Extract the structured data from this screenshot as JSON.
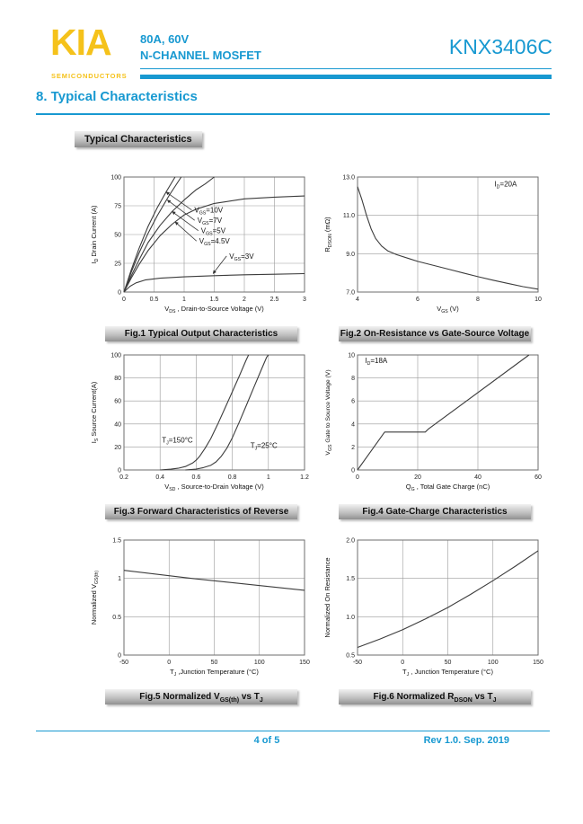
{
  "colors": {
    "accent_cyan": "#1899D1",
    "brand_yellow": "#F5C21B"
  },
  "header": {
    "logo": "KIA",
    "logo_subtitle": "SEMICONDUCTORS",
    "rating_line": "80A, 60V",
    "device_type": "N-CHANNEL MOSFET",
    "part_number": "KNX3406C"
  },
  "section": {
    "title": "8. Typical Characteristics",
    "badge": "Typical Characteristics"
  },
  "footer": {
    "page": "4 of 5",
    "revision": "Rev 1.0. Sep. 2019"
  },
  "chart_data": [
    {
      "id": "fig1",
      "type": "line",
      "caption": "Fig.1 Typical Output Characteristics",
      "xlabel": "V_{DS} , Drain-to-Source Voltage (V)",
      "ylabel": "I_{D} Drain Current (A)",
      "xlim": [
        0,
        3
      ],
      "ylim": [
        0,
        100
      ],
      "xticks": [
        0,
        0.5,
        1,
        1.5,
        2,
        2.5,
        3
      ],
      "xtick_labels": [
        "0",
        "0.5",
        "1",
        "1.5",
        "2",
        "2.5",
        "3"
      ],
      "yticks": [
        0,
        25,
        50,
        75,
        100
      ],
      "ytick_labels": [
        "0",
        "25",
        "50",
        "75",
        "100"
      ],
      "xgrid": [
        0.5,
        1,
        1.5,
        2,
        2.5
      ],
      "ygrid": [
        25,
        50,
        75
      ],
      "series": [
        {
          "name": "V_{GS}=10V",
          "points": [
            [
              0,
              0
            ],
            [
              0.12,
              19
            ],
            [
              0.25,
              38
            ],
            [
              0.4,
              57
            ],
            [
              0.55,
              73
            ],
            [
              0.7,
              87
            ],
            [
              0.85,
              100
            ]
          ]
        },
        {
          "name": "V_{GS}=7V",
          "points": [
            [
              0,
              0
            ],
            [
              0.12,
              17
            ],
            [
              0.25,
              34
            ],
            [
              0.4,
              51
            ],
            [
              0.55,
              66
            ],
            [
              0.75,
              84
            ],
            [
              0.95,
              100
            ]
          ]
        },
        {
          "name": "V_{GS}=5V",
          "points": [
            [
              0,
              0
            ],
            [
              0.12,
              14
            ],
            [
              0.25,
              28
            ],
            [
              0.4,
              43
            ],
            [
              0.6,
              58
            ],
            [
              0.8,
              70
            ],
            [
              1,
              80
            ],
            [
              1.2,
              89
            ],
            [
              1.35,
              94
            ],
            [
              1.5,
              100
            ]
          ]
        },
        {
          "name": "V_{GS}=4.5V",
          "points": [
            [
              0,
              0
            ],
            [
              0.12,
              12
            ],
            [
              0.25,
              24
            ],
            [
              0.4,
              36
            ],
            [
              0.6,
              49
            ],
            [
              0.8,
              59
            ],
            [
              1,
              67
            ],
            [
              1.2,
              72
            ],
            [
              1.5,
              77
            ],
            [
              2,
              81
            ],
            [
              2.5,
              82.5
            ],
            [
              3,
              83.5
            ]
          ]
        },
        {
          "name": "V_{GS}=3V",
          "points": [
            [
              0,
              0
            ],
            [
              0.1,
              5
            ],
            [
              0.2,
              8
            ],
            [
              0.35,
              10.5
            ],
            [
              0.6,
              12
            ],
            [
              1,
              13.2
            ],
            [
              1.5,
              14.2
            ],
            [
              2,
              15
            ],
            [
              2.5,
              15.5
            ],
            [
              3,
              16
            ]
          ]
        }
      ],
      "annotations": [
        {
          "text": "V_{GS}=10V",
          "x": 1.17,
          "y": 69,
          "arrow_to": [
            0.7,
            87
          ]
        },
        {
          "text": "V_{GS}=7V",
          "x": 1.22,
          "y": 60,
          "arrow_to": [
            0.72,
            80
          ]
        },
        {
          "text": "V_{GS}=5V",
          "x": 1.28,
          "y": 51,
          "arrow_to": [
            0.8,
            70
          ]
        },
        {
          "text": "V_{GS}=4.5V",
          "x": 1.25,
          "y": 42,
          "arrow_to": [
            0.85,
            61
          ]
        },
        {
          "text": "V_{GS}=3V",
          "x": 1.75,
          "y": 29,
          "arrow_to": [
            1.48,
            16
          ]
        }
      ]
    },
    {
      "id": "fig2",
      "type": "line",
      "caption": "Fig.2 On-Resistance vs Gate-Source Voltage",
      "xlabel": "V_{GS} (V)",
      "ylabel": "R_{DSON} (mΩ)",
      "xlim": [
        4,
        10
      ],
      "ylim": [
        7,
        13
      ],
      "xticks": [
        4,
        6,
        8,
        10
      ],
      "xtick_labels": [
        "4",
        "6",
        "8",
        "10"
      ],
      "yticks": [
        7,
        9,
        11,
        13
      ],
      "ytick_labels": [
        "7.0",
        "9.0",
        "11.0",
        "13.0"
      ],
      "xgrid": [
        6,
        8
      ],
      "ygrid": [
        9,
        11
      ],
      "series": [
        {
          "name": "R_{DSON}",
          "points": [
            [
              4,
              12.5
            ],
            [
              4.15,
              11.8
            ],
            [
              4.3,
              11
            ],
            [
              4.45,
              10.3
            ],
            [
              4.6,
              9.8
            ],
            [
              4.8,
              9.4
            ],
            [
              5,
              9.15
            ],
            [
              5.3,
              8.95
            ],
            [
              5.7,
              8.75
            ],
            [
              6,
              8.6
            ],
            [
              6.5,
              8.4
            ],
            [
              7,
              8.2
            ],
            [
              7.5,
              8
            ],
            [
              8,
              7.8
            ],
            [
              8.5,
              7.62
            ],
            [
              9,
              7.45
            ],
            [
              9.5,
              7.28
            ],
            [
              10,
              7.15
            ]
          ]
        }
      ],
      "annotations": [
        {
          "text": "I_{D}=20A",
          "x": 8.55,
          "y": 12.5
        }
      ]
    },
    {
      "id": "fig3",
      "type": "line",
      "caption": "Fig.3 Forward Characteristics of Reverse",
      "xlabel": "V_{SD} , Source-to-Drain Voltage (V)",
      "ylabel": "I_{S} Source Current(A)",
      "xlim": [
        0.2,
        1.2
      ],
      "ylim": [
        0,
        100
      ],
      "xticks": [
        0.2,
        0.4,
        0.6,
        0.8,
        1,
        1.2
      ],
      "xtick_labels": [
        "0.2",
        "0.4",
        "0.6",
        "0.8",
        "1",
        "1.2"
      ],
      "yticks": [
        0,
        20,
        40,
        60,
        80,
        100
      ],
      "ytick_labels": [
        "0",
        "20",
        "40",
        "60",
        "80",
        "100"
      ],
      "xgrid": [
        0.4,
        0.6,
        0.8,
        1
      ],
      "ygrid": [
        20,
        40,
        60,
        80
      ],
      "series": [
        {
          "name": "T_{J}=150°C",
          "points": [
            [
              0.4,
              0
            ],
            [
              0.46,
              0.7
            ],
            [
              0.5,
              1.5
            ],
            [
              0.54,
              3
            ],
            [
              0.58,
              6
            ],
            [
              0.6,
              8.5
            ],
            [
              0.62,
              12
            ],
            [
              0.65,
              19
            ],
            [
              0.68,
              27
            ],
            [
              0.72,
              40
            ],
            [
              0.76,
              54
            ],
            [
              0.8,
              68
            ],
            [
              0.84,
              82
            ],
            [
              0.875,
              95
            ],
            [
              0.89,
              100
            ]
          ]
        },
        {
          "name": "T_{J}=25°C",
          "points": [
            [
              0.54,
              0
            ],
            [
              0.6,
              0.8
            ],
            [
              0.64,
              2
            ],
            [
              0.68,
              4
            ],
            [
              0.71,
              7
            ],
            [
              0.74,
              12
            ],
            [
              0.77,
              19
            ],
            [
              0.8,
              28
            ],
            [
              0.84,
              42
            ],
            [
              0.88,
              57
            ],
            [
              0.92,
              72
            ],
            [
              0.96,
              87
            ],
            [
              0.99,
              98
            ],
            [
              1,
              100
            ]
          ]
        }
      ],
      "annotations": [
        {
          "text": "T_{J}=150°C",
          "x": 0.41,
          "y": 24
        },
        {
          "text": "T_{J}=25°C",
          "x": 0.9,
          "y": 19
        }
      ]
    },
    {
      "id": "fig4",
      "type": "line",
      "caption": "Fig.4 Gate-Charge Characteristics",
      "xlabel": "Q_{G} , Total Gate Charge (nC)",
      "ylabel": "V_{GS}  Gate to Source Voltage (V)",
      "ylabel_size": 6.8,
      "xlim": [
        0,
        60
      ],
      "ylim": [
        0,
        10
      ],
      "xticks": [
        0,
        20,
        40,
        60
      ],
      "xtick_labels": [
        "0",
        "20",
        "40",
        "60"
      ],
      "yticks": [
        0,
        2,
        4,
        6,
        8,
        10
      ],
      "ytick_labels": [
        "0",
        "2",
        "4",
        "6",
        "8",
        "10"
      ],
      "xgrid": [
        20,
        40
      ],
      "ygrid": [
        2,
        4,
        6,
        8
      ],
      "series": [
        {
          "name": "V_{GS}",
          "points": [
            [
              0,
              0
            ],
            [
              9,
              3.3
            ],
            [
              22.5,
              3.3
            ],
            [
              23.5,
              3.55
            ],
            [
              57,
              10
            ]
          ]
        }
      ],
      "annotations": [
        {
          "text": "I_{D}=18A",
          "x": 2.5,
          "y": 9.3
        }
      ]
    },
    {
      "id": "fig5",
      "type": "line",
      "caption": "Fig.5 Normalized V_{GS(th)} vs T_{J}",
      "xlabel": "T_{J} ,Junction Temperature (°C)",
      "ylabel": "Normalized V_{GS(th)}",
      "xlim": [
        -50,
        150
      ],
      "ylim": [
        0,
        1.5
      ],
      "xticks": [
        -50,
        0,
        50,
        100,
        150
      ],
      "xtick_labels": [
        "-50",
        "0",
        "50",
        "100",
        "150"
      ],
      "yticks": [
        0,
        0.5,
        1,
        1.5
      ],
      "ytick_labels": [
        "0",
        "0.5",
        "1",
        "1.5"
      ],
      "xgrid": [
        0,
        50,
        100
      ],
      "ygrid": [
        0.5,
        1
      ],
      "series": [
        {
          "name": "Normalized V_{GS(th)}",
          "points": [
            [
              -50,
              1.105
            ],
            [
              25,
              1.0
            ],
            [
              150,
              0.845
            ]
          ]
        }
      ],
      "annotations": []
    },
    {
      "id": "fig6",
      "type": "line",
      "caption": "Fig.6 Normalized R_{DSON} vs T_{J}",
      "xlabel": "T_{J} , Junction Temperature (°C)",
      "ylabel": "Normalized On Resistance",
      "xlim": [
        -50,
        150
      ],
      "ylim": [
        0.5,
        2
      ],
      "xticks": [
        -50,
        0,
        50,
        100,
        150
      ],
      "xtick_labels": [
        "-50",
        "0",
        "50",
        "100",
        "150"
      ],
      "yticks": [
        0.5,
        1,
        1.5,
        2
      ],
      "ytick_labels": [
        "0.5",
        "1.0",
        "1.5",
        "2.0"
      ],
      "xgrid": [
        0,
        50,
        100
      ],
      "ygrid": [
        1,
        1.5
      ],
      "series": [
        {
          "name": "Normalized R_{DSON}",
          "points": [
            [
              -50,
              0.6
            ],
            [
              -25,
              0.71
            ],
            [
              0,
              0.83
            ],
            [
              25,
              0.97
            ],
            [
              50,
              1.12
            ],
            [
              75,
              1.29
            ],
            [
              100,
              1.47
            ],
            [
              125,
              1.66
            ],
            [
              150,
              1.86
            ]
          ]
        }
      ],
      "annotations": []
    }
  ]
}
